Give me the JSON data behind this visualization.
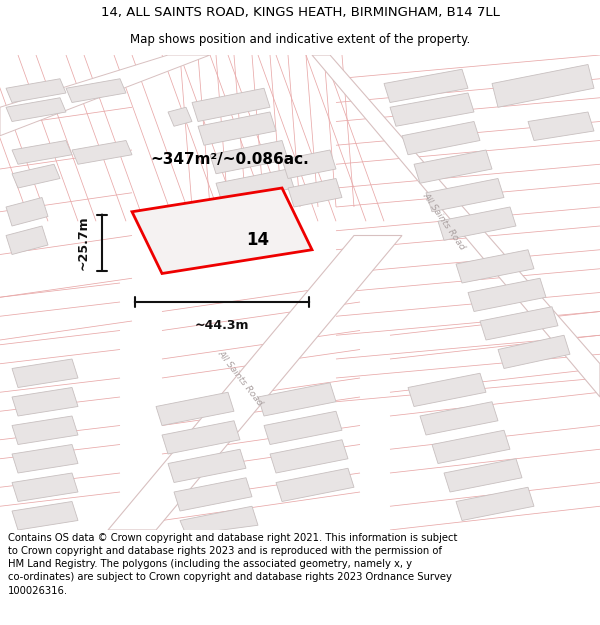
{
  "title_line1": "14, ALL SAINTS ROAD, KINGS HEATH, BIRMINGHAM, B14 7LL",
  "title_line2": "Map shows position and indicative extent of the property.",
  "footer_text": "Contains OS data © Crown copyright and database right 2021. This information is subject to Crown copyright and database rights 2023 and is reproduced with the permission of HM Land Registry. The polygons (including the associated geometry, namely x, y co-ordinates) are subject to Crown copyright and database rights 2023 Ordnance Survey 100026316.",
  "area_label": "~347m²/~0.086ac.",
  "width_label": "~44.3m",
  "height_label": "~25.7m",
  "property_number": "14",
  "road_label_right": "All Saints Road",
  "road_label_bottom": "All Saints Road",
  "map_bg": "#f5f2f2",
  "building_fill": "#e8e4e4",
  "building_edge": "#c8c0c0",
  "road_fill": "#ffffff",
  "lot_line_color": "#e8a8a8",
  "road_edge_color": "#d8c0c0",
  "property_edge": "#ee0000",
  "property_fill": "#f5f2f2",
  "dim_color": "#111111",
  "title_fontsize": 9.5,
  "subtitle_fontsize": 8.5,
  "footer_fontsize": 7.2,
  "road_label_color": "#aaa0a0",
  "road_label_size": 6.5
}
